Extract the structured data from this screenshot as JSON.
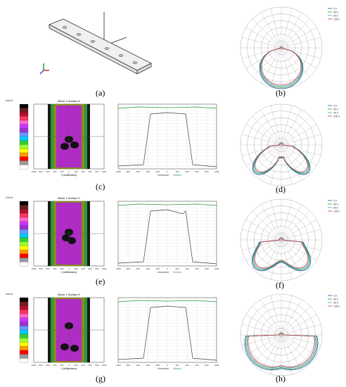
{
  "labels": {
    "a": "(a)",
    "b": "(b)",
    "c": "(c)",
    "d": "(d)",
    "e": "(e)",
    "f": "(f)",
    "g": "(g)",
    "h": "(h)"
  },
  "heatmap": {
    "title": "Block 1 Surface 5",
    "xlabel": "X (millimeters)",
    "x_ticks": [
      "1000",
      "800",
      "600",
      "400",
      "200",
      "0",
      "200",
      "400",
      "600",
      "800",
      "1000"
    ],
    "legend_header": "Unit:nf"
  },
  "profile": {
    "legend": [
      "Horizontal",
      "Vertical"
    ],
    "x_ticks": [
      "-1000",
      "-800",
      "-600",
      "-400",
      "-200",
      "0",
      "200",
      "400",
      "600",
      "800",
      "1000"
    ]
  },
  "polar_legends": {
    "b": [
      "0.0",
      "45.0",
      "90.0",
      "135.0"
    ],
    "d": [
      "0.0",
      "45.0",
      "90.0",
      "135.0"
    ],
    "f": [
      "0.0",
      "45.0",
      "90.0",
      "135.0"
    ],
    "h": [
      "0.0",
      "45.0",
      "90.0",
      "135.0"
    ]
  },
  "colors": {
    "magenta": "#b02cc6",
    "olive": "#8a8a1e",
    "green_series": "#2a9a3a",
    "teal_series": "#2aa6a6",
    "blue_series": "#1f4fb0",
    "red_series": "#d63a4a"
  }
}
